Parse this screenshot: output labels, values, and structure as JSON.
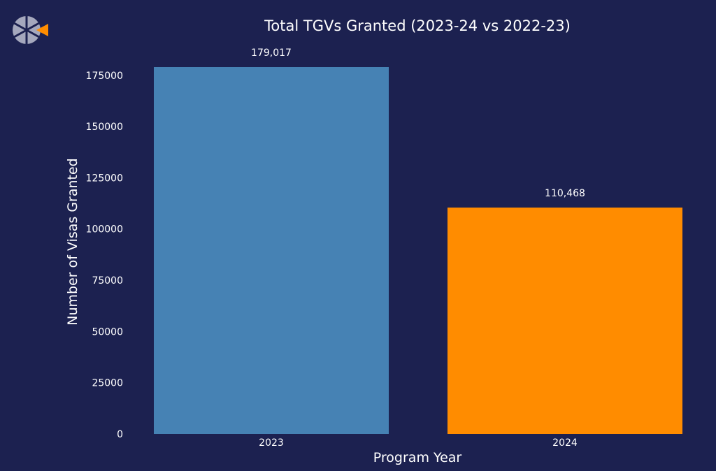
{
  "chart_data": {
    "type": "bar",
    "title": "Total TGVs Granted (2023-24 vs 2022-23)",
    "xlabel": "Program Year",
    "ylabel": "Number of Visas Granted",
    "categories": [
      "2023",
      "2024"
    ],
    "values": [
      179017,
      110468
    ],
    "data_labels": [
      "179,017",
      "110,468"
    ],
    "bar_colors": [
      "#4682b4",
      "#ff8c00"
    ],
    "ylim": [
      0,
      179017
    ],
    "yticks": [
      0,
      25000,
      50000,
      75000,
      100000,
      125000,
      150000,
      175000
    ],
    "ytick_labels": [
      "0",
      "25000",
      "50000",
      "75000",
      "100000",
      "125000",
      "150000",
      "175000"
    ],
    "grid": false,
    "background": "#1c2150"
  },
  "logo": {
    "icon": "brand-logo-icon",
    "accent": "#ff8c00"
  }
}
